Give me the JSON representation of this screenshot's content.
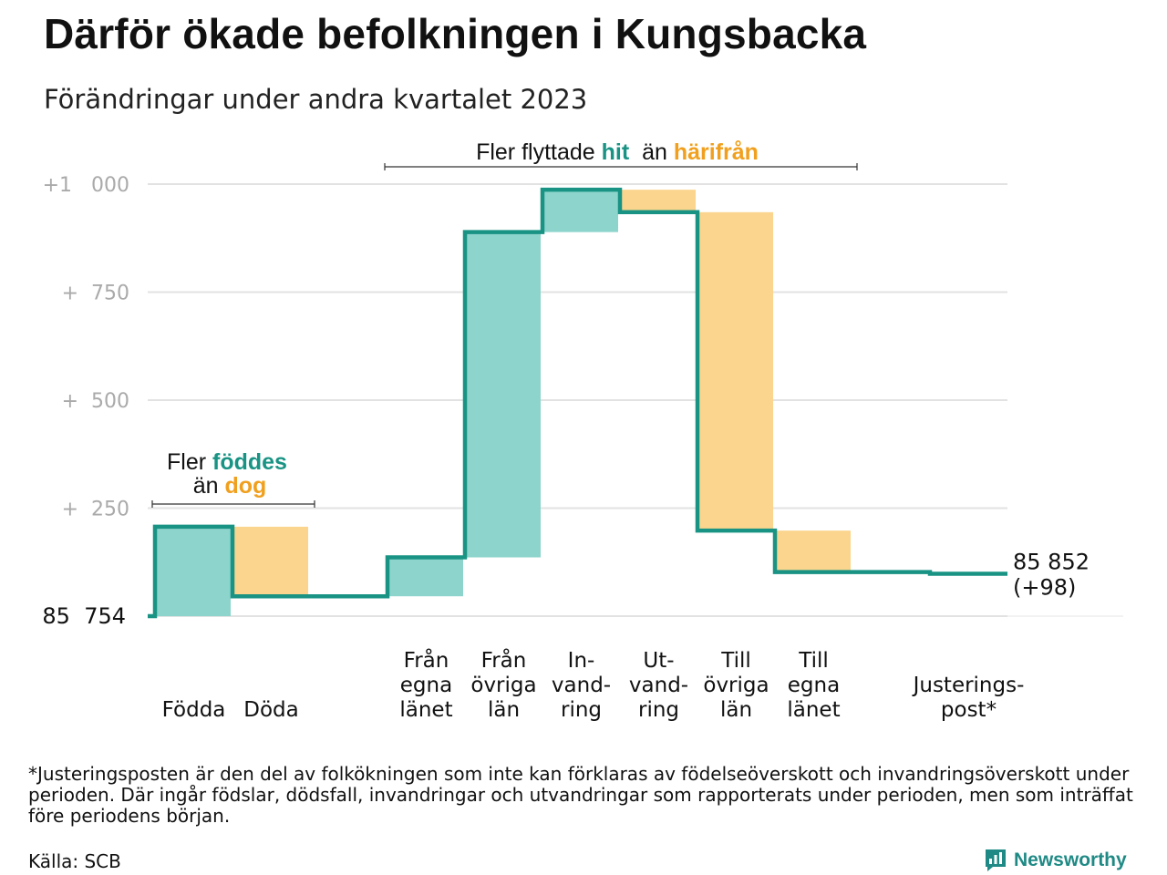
{
  "header": {
    "title": "Därför ökade befolkningen i Kungsbacka",
    "subtitle": "Förändringar under andra kvartalet 2023"
  },
  "annotations": {
    "births": {
      "line1": "Fler",
      "hi1": "föddes",
      "line2": "än",
      "hi2": "dog"
    },
    "moves": {
      "pre": "Fler flyttade",
      "hi1": "hit",
      "mid": "än",
      "hi2": "härifrån"
    }
  },
  "colors": {
    "increase_fill": "#8dd4cc",
    "decrease_fill": "#fbd58d",
    "line": "#199384",
    "highlight_green": "#199384",
    "highlight_orange": "#f0a01e",
    "grid": "#e2e2e2",
    "tick": "#aaaaaa"
  },
  "chart_data": {
    "type": "waterfall",
    "start": {
      "value": 85754,
      "label": "85  754"
    },
    "end": {
      "value": 85852,
      "label": "85 852",
      "change_label": "(+98)"
    },
    "ylim": [
      0,
      1000
    ],
    "yticks": [
      {
        "value": 250,
        "label": "+  250"
      },
      {
        "value": 500,
        "label": "+  500"
      },
      {
        "value": 750,
        "label": "+  750"
      },
      {
        "value": 1000,
        "label": "+1   000"
      }
    ],
    "steps": [
      {
        "label": [
          "Födda"
        ],
        "change": 207,
        "from": 0,
        "to": 207
      },
      {
        "label": [
          "Döda"
        ],
        "change": -161,
        "from": 207,
        "to": 46
      },
      {
        "label": [],
        "change": 0,
        "from": 46,
        "to": 46
      },
      {
        "label": [
          "Från",
          "egna",
          "länet"
        ],
        "change": 90,
        "from": 46,
        "to": 136
      },
      {
        "label": [
          "Från",
          "övriga",
          "län"
        ],
        "change": 753,
        "from": 136,
        "to": 889
      },
      {
        "label": [
          "In-",
          "vand-",
          "ring"
        ],
        "change": 98,
        "from": 889,
        "to": 987
      },
      {
        "label": [
          "Ut-",
          "vand-",
          "ring"
        ],
        "change": -52,
        "from": 987,
        "to": 935
      },
      {
        "label": [
          "Till",
          "övriga",
          "län"
        ],
        "change": -737,
        "from": 935,
        "to": 198
      },
      {
        "label": [
          "Till",
          "egna",
          "länet"
        ],
        "change": -96,
        "from": 198,
        "to": 102
      },
      {
        "label": [],
        "change": 0,
        "from": 102,
        "to": 102
      },
      {
        "label": [
          "Justerings-",
          "post*"
        ],
        "change": -4,
        "from": 102,
        "to": 98
      }
    ]
  },
  "footnote": "*Justeringsposten är den del av folkökningen som inte kan förklaras av födelseöverskott och invandringsöverskott under perioden. Där ingår födslar, dödsfall, invandringar och utvandringar som rapporterats under perioden, men som inträffat före periodens början.",
  "source": "Källa: SCB",
  "brand": {
    "name": "Newsworthy",
    "icon": "newsworthy-logo-icon"
  }
}
